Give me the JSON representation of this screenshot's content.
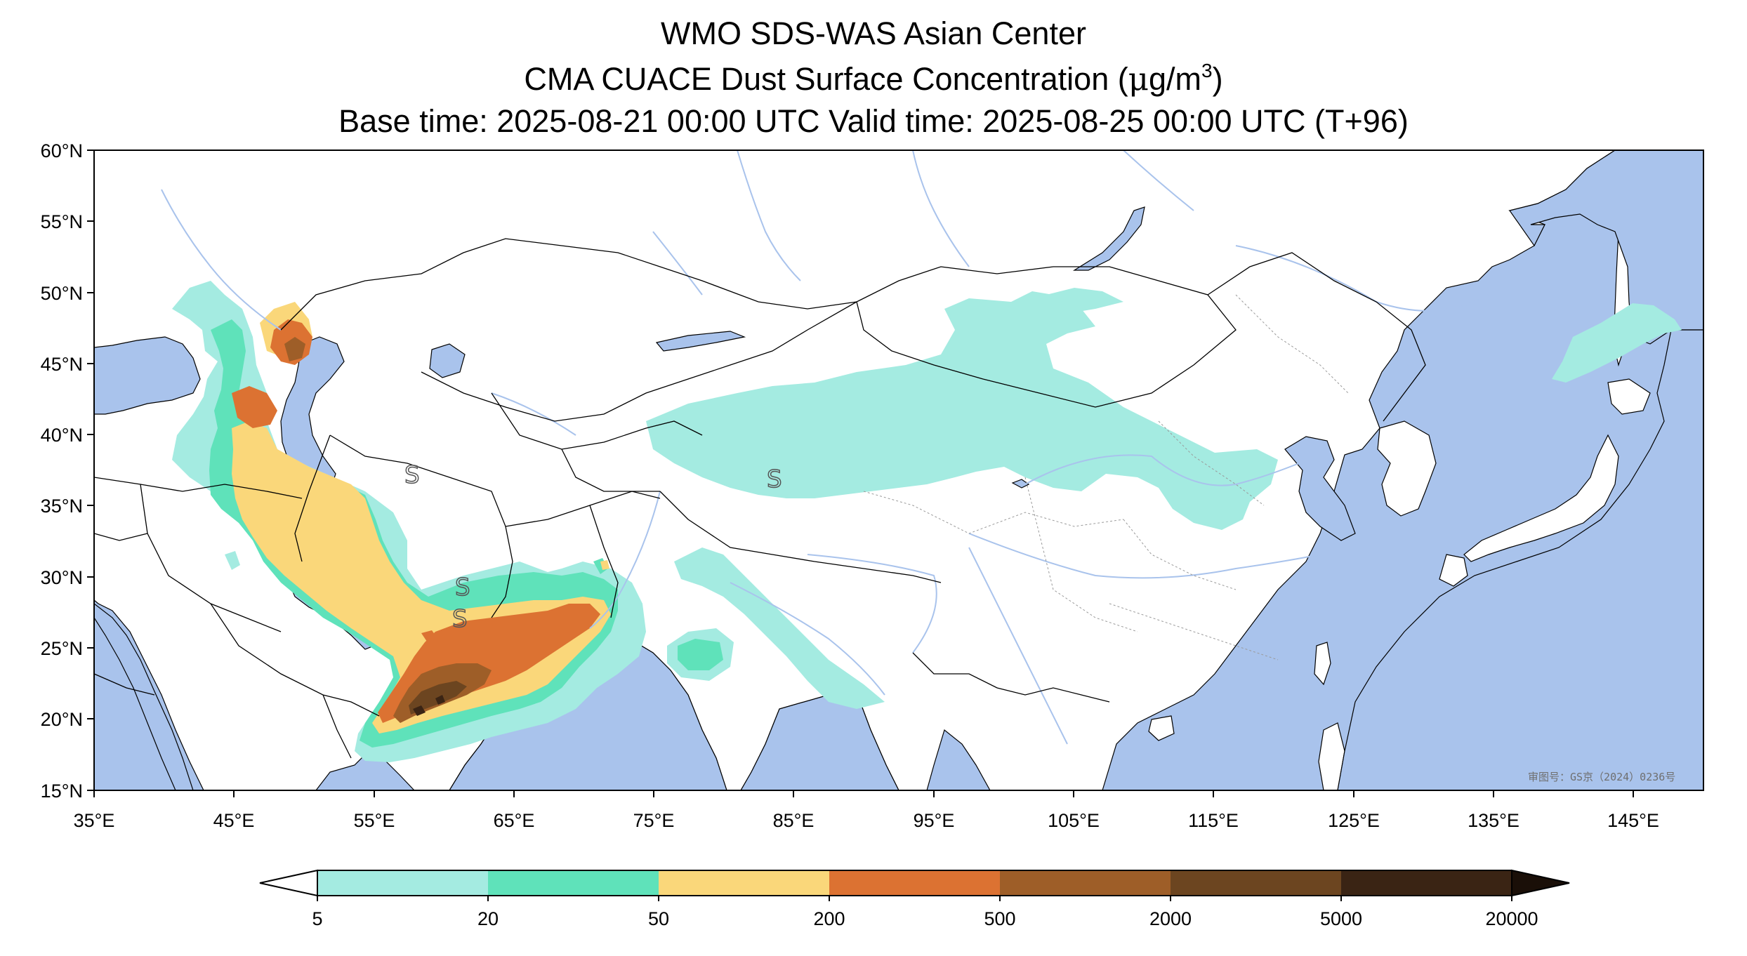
{
  "title": {
    "line1": "WMO SDS-WAS Asian Center",
    "line2_text": "CMA CUACE Dust Surface Concentration (",
    "line2_mu": "μ",
    "line2_unit": "g/m",
    "line2_exp": "3",
    "line2_close": ")",
    "line3": "Base time: 2025-08-21 00:00 UTC Valid time: 2025-08-25 00:00 UTC (T+96)"
  },
  "map": {
    "lat_labels": [
      "60°N",
      "55°N",
      "50°N",
      "45°N",
      "40°N",
      "35°N",
      "30°N",
      "25°N",
      "20°N",
      "15°N"
    ],
    "lon_labels": [
      "35°E",
      "45°E",
      "55°E",
      "65°E",
      "75°E",
      "85°E",
      "95°E",
      "105°E",
      "115°E",
      "125°E",
      "135°E",
      "145°E"
    ],
    "extent": {
      "lon_min": 35,
      "lon_max": 150,
      "lat_min": 15,
      "lat_max": 60
    },
    "colors": {
      "ocean": "#a9c3ec",
      "land": "#ffffff",
      "river": "#a9c3ec"
    },
    "dust_markers": [
      "S",
      "S",
      "S",
      "S"
    ],
    "watermark": "审图号：GS京（2024）0236号"
  },
  "colorbar": {
    "tick_labels": [
      "5",
      "20",
      "50",
      "200",
      "500",
      "2000",
      "5000",
      "20000"
    ],
    "colors": [
      "#a4ebe1",
      "#5fe2ba",
      "#fad77a",
      "#dc7232",
      "#9e5e28",
      "#6c4520",
      "#3a2414",
      "#1a0f08"
    ],
    "min_extend_color": "#ffffff",
    "max_extend_color": "#1a0f08"
  }
}
